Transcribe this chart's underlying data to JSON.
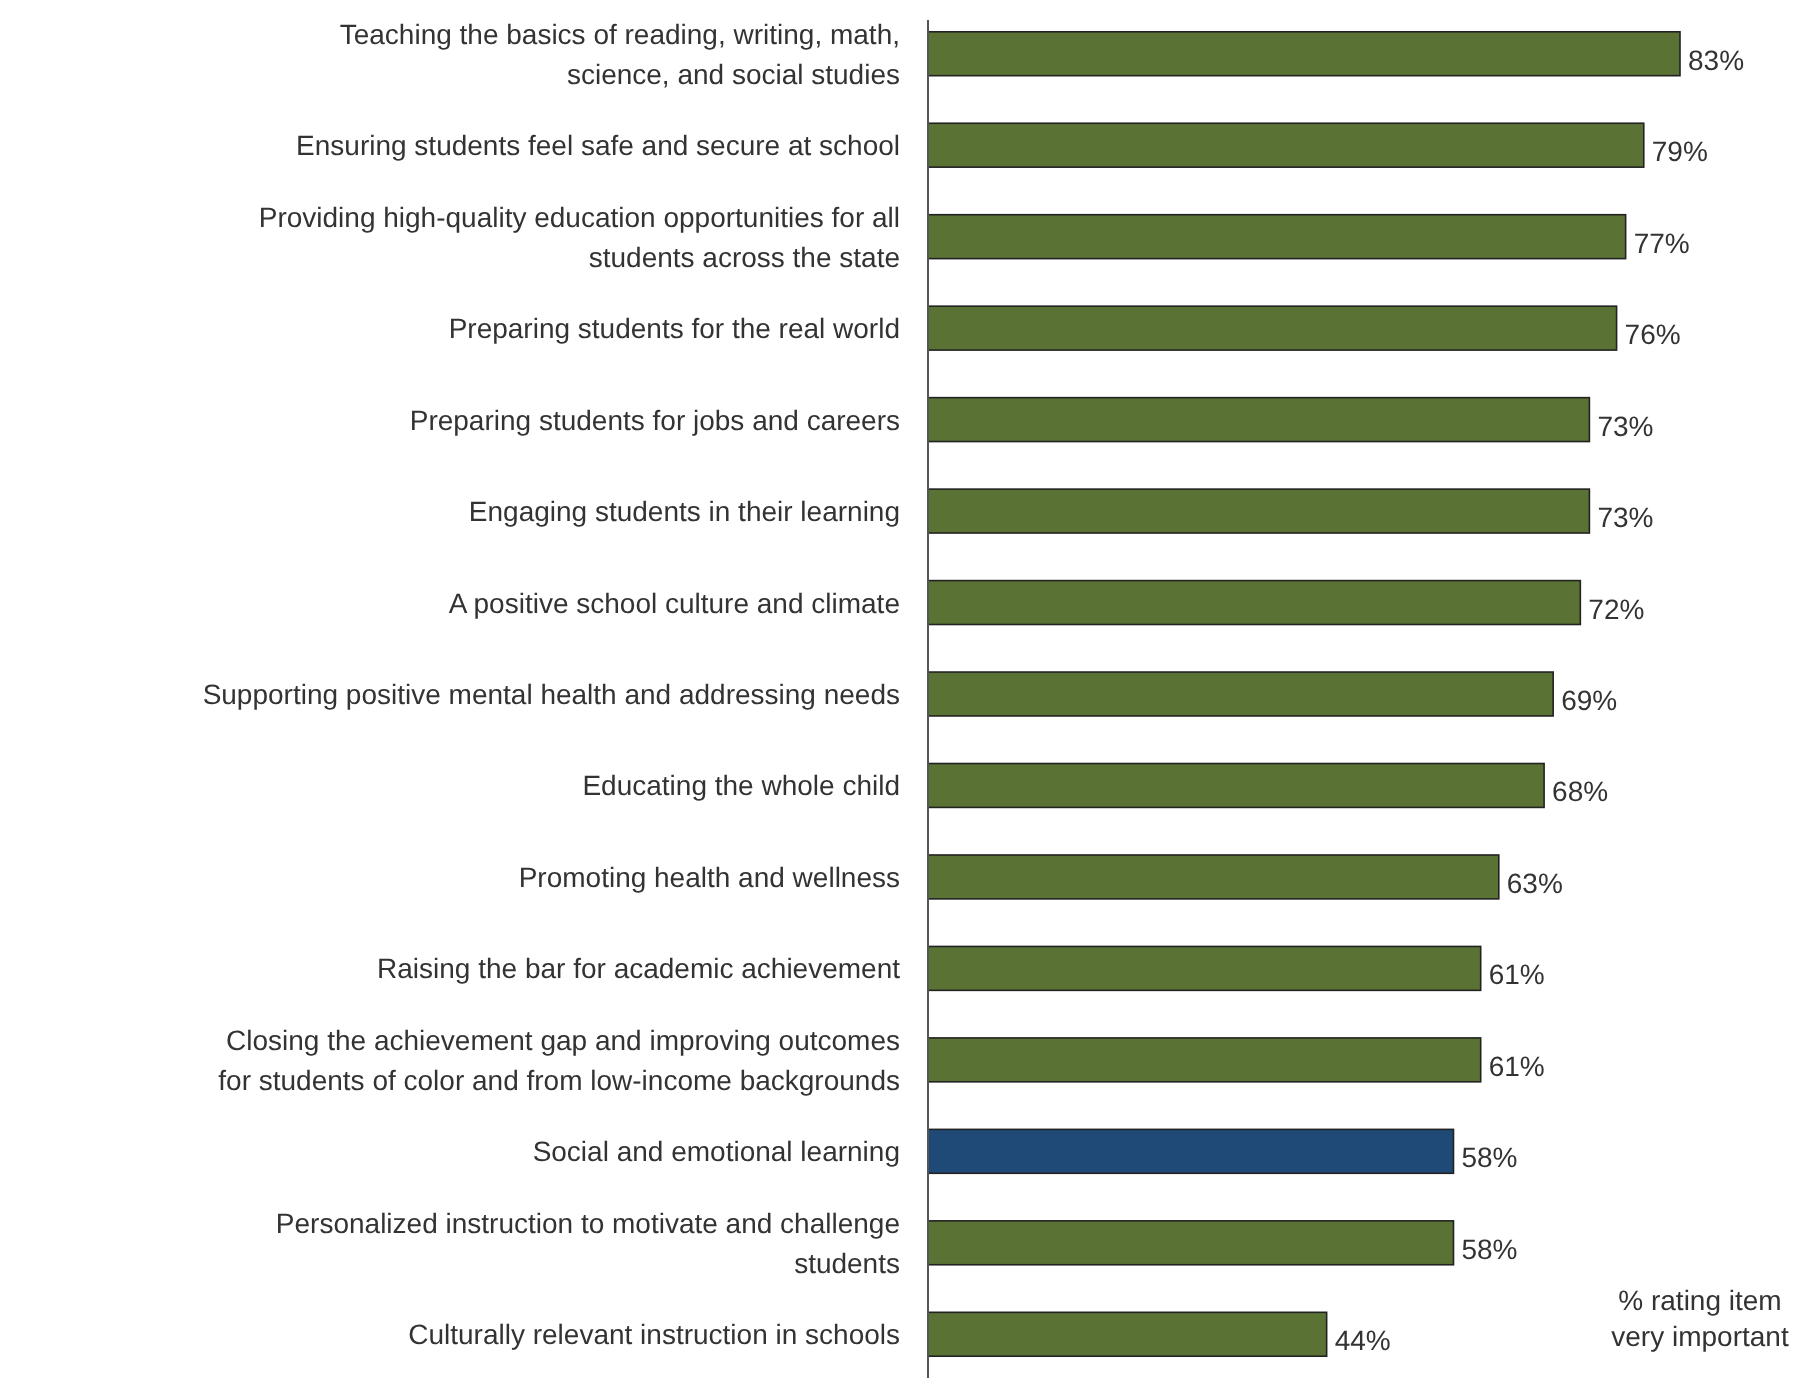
{
  "chart_data": {
    "type": "bar",
    "orientation": "horizontal",
    "relative": false,
    "categories": [
      "Teaching the basics of reading, writing, math,\nscience, and social studies",
      "Ensuring students feel safe and secure at school",
      "Providing high-quality education opportunities for all\nstudents across the state",
      "Preparing students for the real world",
      "Preparing students for jobs and careers",
      "Engaging students in their learning",
      "A positive school culture and climate",
      "Supporting positive mental health and addressing needs",
      "Educating the whole child",
      "Promoting health and wellness",
      "Raising the bar for academic achievement",
      "Closing the achievement gap and improving outcomes\nfor students of color and from low-income backgrounds",
      "Social and emotional learning",
      "Personalized instruction to motivate and challenge\nstudents",
      "Culturally relevant instruction in schools"
    ],
    "values": [
      83,
      79,
      77,
      76,
      73,
      73,
      72,
      69,
      68,
      63,
      61,
      61,
      58,
      58,
      44
    ],
    "value_labels": [
      "83%",
      "79%",
      "77%",
      "76%",
      "73%",
      "73%",
      "72%",
      "69%",
      "68%",
      "63%",
      "61%",
      "61%",
      "58%",
      "58%",
      "44%"
    ],
    "colors": [
      "#5a7334",
      "#5a7334",
      "#5a7334",
      "#5a7334",
      "#5a7334",
      "#5a7334",
      "#5a7334",
      "#5a7334",
      "#5a7334",
      "#5a7334",
      "#5a7334",
      "#5a7334",
      "#1f4a78",
      "#5a7334",
      "#5a7334"
    ],
    "annotations": [
      "% rating item\nvery important"
    ]
  }
}
